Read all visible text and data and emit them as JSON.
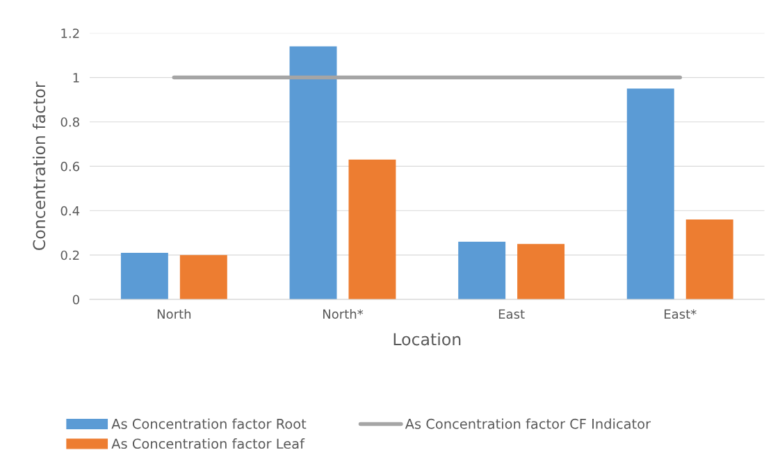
{
  "chart_data": {
    "type": "bar",
    "xlabel": "Location",
    "ylabel": "Concentration factor",
    "categories": [
      "North",
      "North*",
      "East",
      "East*"
    ],
    "series": [
      {
        "name": "As Concentration factor Root",
        "color": "#5b9bd5",
        "values": [
          0.21,
          1.14,
          0.26,
          0.95
        ]
      },
      {
        "name": "As Concentration factor Leaf",
        "color": "#ed7d31",
        "values": [
          0.2,
          0.63,
          0.25,
          0.36
        ]
      },
      {
        "name": "As Concentration factor CF Indicator",
        "color": "#a5a5a5",
        "type": "line",
        "values": [
          1,
          1,
          1,
          1
        ]
      }
    ],
    "ylim": [
      0,
      1.2
    ],
    "yticks": [
      0,
      0.2,
      0.4,
      0.6,
      0.8,
      1,
      1.2
    ],
    "grid": "y",
    "legend": "bottom",
    "marker": "none",
    "line_style": "solid"
  }
}
